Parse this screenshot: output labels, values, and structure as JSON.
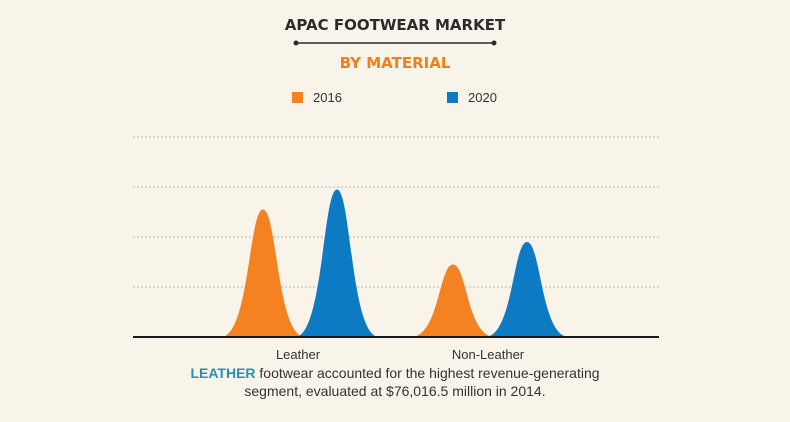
{
  "colors": {
    "background": "#f8f4ea",
    "series_2016": "#f58220",
    "series_2020": "#0c7bc4",
    "highlight": "#2a8fb0",
    "title": "#2b2b2b",
    "subtitle": "#ef7f1a"
  },
  "caption": {
    "highlight": "LEATHER",
    "line1_rest": " footwear accounted for the highest revenue-generating",
    "line2": "segment, evaluated at $76,016.5 million in 2014."
  },
  "chart_data": {
    "type": "area",
    "title": "APAC FOOTWEAR MARKET",
    "subtitle": "BY MATERIAL",
    "categories": [
      "Leather",
      "Non-Leather"
    ],
    "series": [
      {
        "name": "2016",
        "values": [
          2.55,
          1.45
        ]
      },
      {
        "name": "2020",
        "values": [
          2.95,
          1.9
        ]
      }
    ],
    "ylim": [
      0,
      4
    ],
    "gridlines": [
      1,
      2,
      3,
      4
    ],
    "grid": true,
    "legend_position": "top"
  }
}
